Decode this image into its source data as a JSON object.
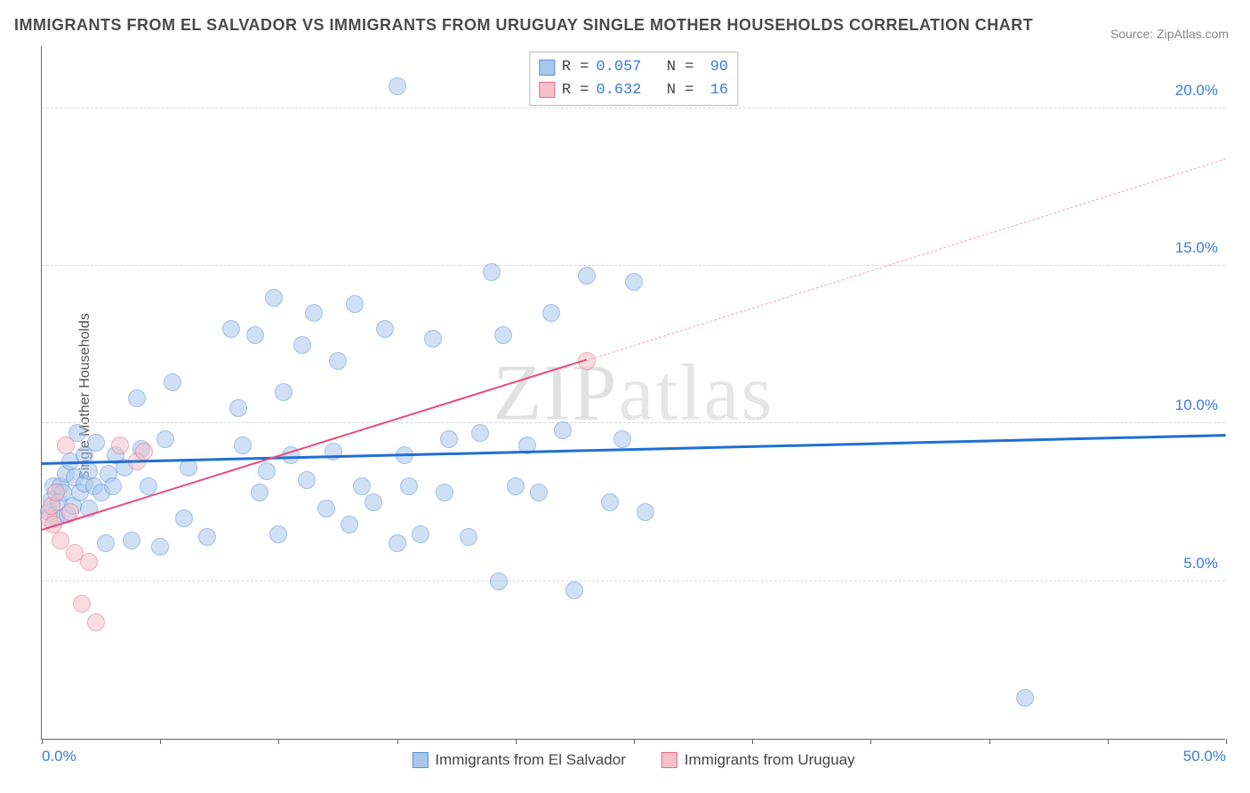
{
  "title": "IMMIGRANTS FROM EL SALVADOR VS IMMIGRANTS FROM URUGUAY SINGLE MOTHER HOUSEHOLDS CORRELATION CHART",
  "source": "Source: ZipAtlas.com",
  "ylabel": "Single Mother Households",
  "watermark_a": "ZIP",
  "watermark_b": "atlas",
  "chart": {
    "type": "scatter",
    "xlim": [
      0,
      50
    ],
    "ylim": [
      0,
      22
    ],
    "xtick_positions": [
      0,
      5,
      10,
      15,
      20,
      25,
      30,
      35,
      40,
      45,
      50
    ],
    "xtick_labels_shown": {
      "0": "0.0%",
      "50": "50.0%"
    },
    "ytick_positions": [
      5,
      10,
      15,
      20
    ],
    "ytick_labels": {
      "5": "5.0%",
      "10": "10.0%",
      "15": "15.0%",
      "20": "20.0%"
    },
    "background_color": "#ffffff",
    "grid_color": "#d8d8d8",
    "axis_color": "#666666",
    "tick_label_color": "#3b7dd8",
    "marker_radius": 10,
    "marker_opacity": 0.55,
    "series": [
      {
        "name": "Immigrants from El Salvador",
        "color_fill": "#a9c6ec",
        "color_stroke": "#5a8fd6",
        "R": "0.057",
        "N": "90",
        "trend": {
          "x1": 0,
          "y1": 8.7,
          "x2": 50,
          "y2": 9.6,
          "color": "#1f6fd4",
          "width": 3,
          "dash": false
        },
        "points": [
          [
            0.3,
            7.2
          ],
          [
            0.4,
            7.6
          ],
          [
            0.5,
            8.0
          ],
          [
            0.6,
            7.0
          ],
          [
            0.7,
            7.5
          ],
          [
            0.8,
            8.0
          ],
          [
            0.9,
            7.8
          ],
          [
            1.0,
            8.4
          ],
          [
            1.1,
            7.1
          ],
          [
            1.2,
            8.8
          ],
          [
            1.3,
            7.4
          ],
          [
            1.4,
            8.3
          ],
          [
            1.5,
            9.7
          ],
          [
            1.6,
            7.8
          ],
          [
            1.8,
            8.1
          ],
          [
            1.8,
            9.0
          ],
          [
            2.0,
            7.3
          ],
          [
            2.0,
            8.5
          ],
          [
            2.2,
            8.0
          ],
          [
            2.3,
            9.4
          ],
          [
            2.5,
            7.8
          ],
          [
            2.7,
            6.2
          ],
          [
            2.8,
            8.4
          ],
          [
            3.0,
            8.0
          ],
          [
            3.1,
            9.0
          ],
          [
            3.5,
            8.6
          ],
          [
            3.8,
            6.3
          ],
          [
            4.0,
            10.8
          ],
          [
            4.2,
            9.2
          ],
          [
            4.5,
            8.0
          ],
          [
            5.0,
            6.1
          ],
          [
            5.2,
            9.5
          ],
          [
            5.5,
            11.3
          ],
          [
            6.0,
            7.0
          ],
          [
            6.2,
            8.6
          ],
          [
            7.0,
            6.4
          ],
          [
            8.0,
            13.0
          ],
          [
            8.3,
            10.5
          ],
          [
            8.5,
            9.3
          ],
          [
            9.0,
            12.8
          ],
          [
            9.2,
            7.8
          ],
          [
            9.5,
            8.5
          ],
          [
            9.8,
            14.0
          ],
          [
            10.0,
            6.5
          ],
          [
            10.2,
            11.0
          ],
          [
            10.5,
            9.0
          ],
          [
            11.0,
            12.5
          ],
          [
            11.2,
            8.2
          ],
          [
            11.5,
            13.5
          ],
          [
            12.0,
            7.3
          ],
          [
            12.3,
            9.1
          ],
          [
            12.5,
            12.0
          ],
          [
            13.0,
            6.8
          ],
          [
            13.2,
            13.8
          ],
          [
            13.5,
            8.0
          ],
          [
            14.0,
            7.5
          ],
          [
            14.5,
            13.0
          ],
          [
            15.0,
            6.2
          ],
          [
            15.0,
            20.7
          ],
          [
            15.3,
            9.0
          ],
          [
            15.5,
            8.0
          ],
          [
            16.0,
            6.5
          ],
          [
            16.5,
            12.7
          ],
          [
            17.0,
            7.8
          ],
          [
            17.2,
            9.5
          ],
          [
            18.0,
            6.4
          ],
          [
            18.5,
            9.7
          ],
          [
            19.0,
            14.8
          ],
          [
            19.3,
            5.0
          ],
          [
            19.5,
            12.8
          ],
          [
            20.0,
            8.0
          ],
          [
            20.5,
            9.3
          ],
          [
            21.0,
            7.8
          ],
          [
            21.5,
            13.5
          ],
          [
            22.0,
            9.8
          ],
          [
            22.5,
            4.7
          ],
          [
            23.0,
            14.7
          ],
          [
            24.0,
            7.5
          ],
          [
            24.5,
            9.5
          ],
          [
            25.0,
            14.5
          ],
          [
            25.5,
            7.2
          ],
          [
            41.5,
            1.3
          ]
        ]
      },
      {
        "name": "Immigrants from Uruguay",
        "color_fill": "#f4c1cb",
        "color_stroke": "#e66a8a",
        "R": "0.632",
        "N": "16",
        "trend": {
          "x1": 0,
          "y1": 6.6,
          "x2": 23,
          "y2": 12.0,
          "color": "#e94a7a",
          "width": 2.5,
          "dash": false
        },
        "trend_ext": {
          "x1": 23,
          "y1": 12.0,
          "x2": 50,
          "y2": 18.4,
          "color": "#f4a6ba",
          "width": 1.5,
          "dash": true
        },
        "points": [
          [
            0.3,
            7.0
          ],
          [
            0.4,
            7.4
          ],
          [
            0.5,
            6.8
          ],
          [
            0.6,
            7.8
          ],
          [
            0.8,
            6.3
          ],
          [
            1.0,
            9.3
          ],
          [
            1.2,
            7.2
          ],
          [
            1.4,
            5.9
          ],
          [
            1.7,
            4.3
          ],
          [
            2.0,
            5.6
          ],
          [
            2.3,
            3.7
          ],
          [
            3.3,
            9.3
          ],
          [
            4.0,
            8.8
          ],
          [
            4.3,
            9.1
          ],
          [
            23.0,
            12.0
          ]
        ]
      }
    ]
  },
  "legend_bottom": [
    {
      "label": "Immigrants from El Salvador",
      "fill": "#a9c6ec",
      "stroke": "#5a8fd6"
    },
    {
      "label": "Immigrants from Uruguay",
      "fill": "#f4c1cb",
      "stroke": "#e66a8a"
    }
  ]
}
